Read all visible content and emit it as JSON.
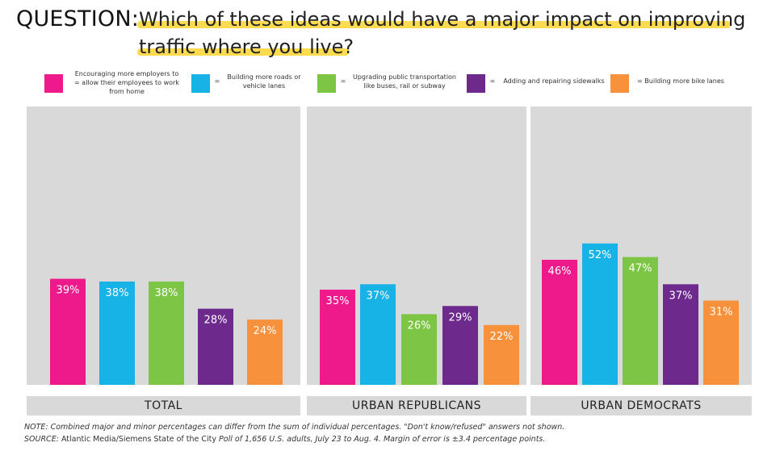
{
  "header": {
    "label": "QUESTION:",
    "question_line1": "Which of these ideas would have a major impact on improving",
    "question_line2": "traffic where you live?"
  },
  "legend": [
    {
      "prefix": "",
      "line1": "Encouraging more employers to",
      "line2": "= allow their employees to work",
      "line3": "from home",
      "color": "#ee1a8c"
    },
    {
      "prefix": "=",
      "line1": "Building more roads or",
      "line2": "vehicle lanes",
      "line3": "",
      "color": "#17b2e6"
    },
    {
      "prefix": "=",
      "line1": "Upgrading public transportation",
      "line2": "like buses, rail or subway",
      "line3": "",
      "color": "#7dc544"
    },
    {
      "prefix": "=",
      "line1": "Adding and repairing sidewalks",
      "line2": "",
      "line3": "",
      "color": "#6d2a8c"
    },
    {
      "prefix": "",
      "line1": "= Building more bike lanes",
      "line2": "",
      "line3": "",
      "color": "#f7913b"
    }
  ],
  "chart_data": {
    "type": "bar",
    "title": "Which of these ideas would have a major impact on improving traffic where you live?",
    "ylim": [
      0,
      60
    ],
    "value_suffix": "%",
    "series_names": [
      "Encouraging more employers to allow their employees to work from home",
      "Building more roads or vehicle lanes",
      "Upgrading public transportation like buses, rail or subway",
      "Adding and repairing sidewalks",
      "Building more bike lanes"
    ],
    "colors": [
      "#ee1a8c",
      "#17b2e6",
      "#7dc544",
      "#6d2a8c",
      "#f7913b"
    ],
    "groups": [
      {
        "name": "TOTAL",
        "values": [
          39,
          38,
          38,
          28,
          24
        ]
      },
      {
        "name": "URBAN REPUBLICANS",
        "values": [
          35,
          37,
          26,
          29,
          22
        ]
      },
      {
        "name": "URBAN DEMOCRATS",
        "values": [
          46,
          52,
          47,
          37,
          31
        ]
      }
    ]
  },
  "footer": {
    "note": "NOTE: Combined major and minor percentages can differ from the sum of individual percentages. \"Don't know/refused\" answers not shown.",
    "source_label": "SOURCE:",
    "source_name": "Atlantic Media/Siemens State of the City",
    "source_rest": "Poll of 1,656 U.S. adults, July 23 to Aug. 4. Margin of error is ±3.4 percentage points."
  }
}
